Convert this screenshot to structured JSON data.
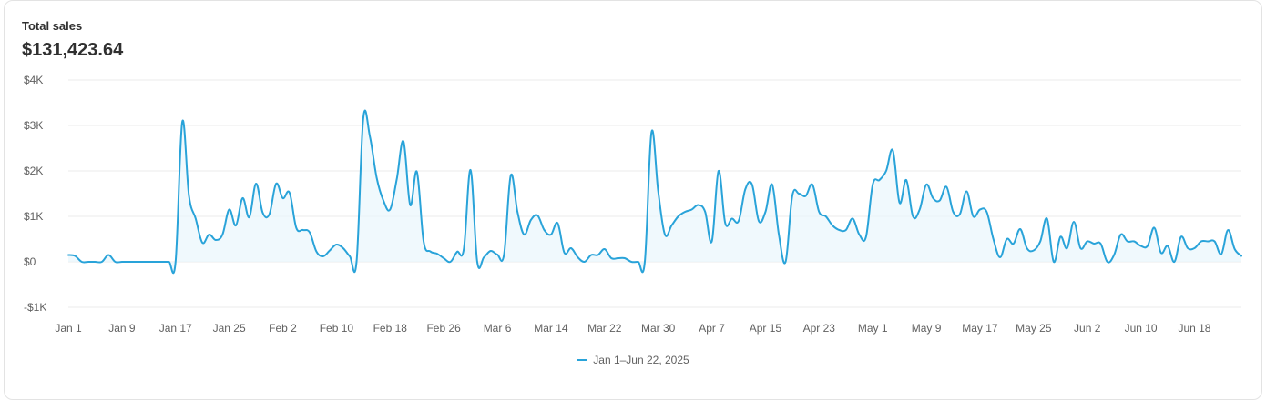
{
  "metric": {
    "label": "Total sales",
    "value": "$131,423.64"
  },
  "colors": {
    "line": "#29a3d9",
    "fill": "#eaf6fc",
    "grid": "#ebebeb",
    "tick": "#616161"
  },
  "legend": {
    "label": "Jan 1–Jun 22, 2025"
  },
  "chart_data": {
    "type": "area",
    "title": "",
    "xlabel": "",
    "ylabel": "",
    "ylim": [
      -1000,
      4000
    ],
    "y_ticks": [
      4000,
      3000,
      2000,
      1000,
      0,
      -1000
    ],
    "y_tick_labels": [
      "$4K",
      "$3K",
      "$2K",
      "$1K",
      "$0",
      "-$1K"
    ],
    "x_tick_labels": [
      "Jan 1",
      "Jan 9",
      "Jan 17",
      "Jan 25",
      "Feb 2",
      "Feb 10",
      "Feb 18",
      "Feb 26",
      "Mar 6",
      "Mar 14",
      "Mar 22",
      "Mar 30",
      "Apr 7",
      "Apr 15",
      "Apr 23",
      "May 1",
      "May 9",
      "May 17",
      "May 25",
      "Jun 2",
      "Jun 10",
      "Jun 18"
    ],
    "grid": true,
    "legend_position": "bottom-center",
    "series": [
      {
        "name": "Jan 1–Jun 22, 2025",
        "values": [
          150,
          130,
          0,
          0,
          0,
          0,
          150,
          0,
          0,
          0,
          0,
          0,
          0,
          0,
          0,
          0,
          0,
          3080,
          1450,
          950,
          420,
          600,
          480,
          600,
          1150,
          800,
          1400,
          980,
          1720,
          1080,
          1050,
          1720,
          1400,
          1520,
          750,
          700,
          650,
          230,
          120,
          250,
          380,
          300,
          120,
          0,
          3150,
          2750,
          1850,
          1350,
          1150,
          1820,
          2650,
          1250,
          1980,
          450,
          230,
          180,
          80,
          0,
          220,
          280,
          2020,
          0,
          100,
          240,
          160,
          160,
          1900,
          1100,
          600,
          920,
          1020,
          700,
          600,
          850,
          200,
          300,
          100,
          0,
          150,
          150,
          280,
          80,
          80,
          80,
          0,
          0,
          0,
          2850,
          1550,
          600,
          800,
          1000,
          1100,
          1150,
          1250,
          1100,
          450,
          2000,
          850,
          950,
          900,
          1600,
          1700,
          900,
          1100,
          1700,
          600,
          0,
          1450,
          1500,
          1450,
          1700,
          1100,
          1000,
          800,
          700,
          700,
          950,
          600,
          550,
          1700,
          1800,
          2000,
          2450,
          1300,
          1800,
          1000,
          1150,
          1700,
          1400,
          1350,
          1650,
          1100,
          1050,
          1550,
          1000,
          1150,
          1100,
          500,
          100,
          500,
          400,
          720,
          300,
          250,
          450,
          950,
          0,
          550,
          300,
          880,
          300,
          450,
          400,
          400,
          0,
          150,
          600,
          450,
          450,
          350,
          350,
          750,
          200,
          350,
          0,
          550,
          300,
          300,
          450,
          450,
          450,
          170,
          700,
          280,
          130
        ]
      }
    ]
  }
}
